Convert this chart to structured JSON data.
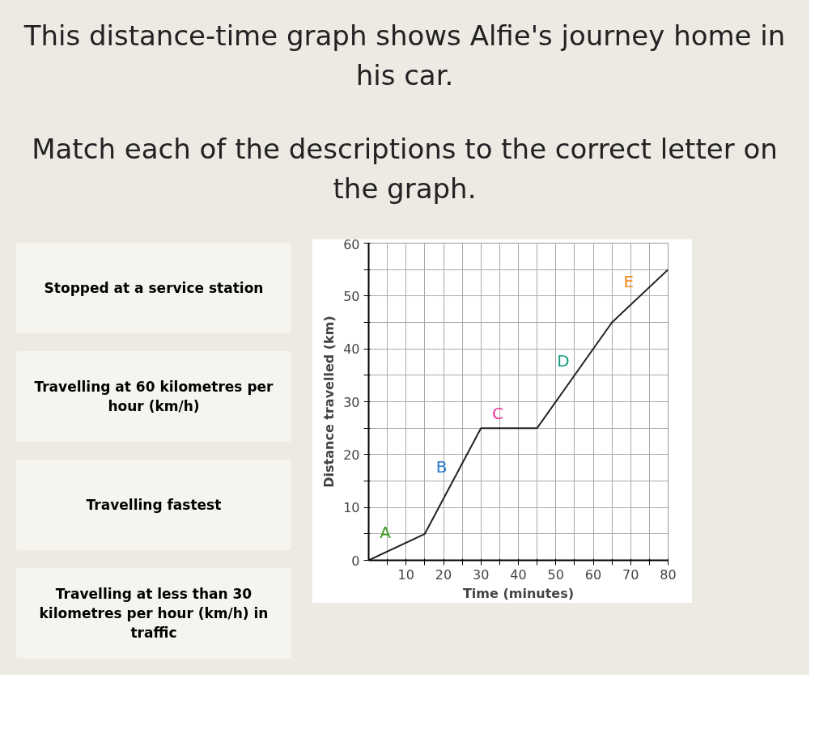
{
  "chart_data": {
    "type": "line",
    "title": "This distance-time graph shows Alfie's journey home in his car.",
    "subtitle": "Match each of the descriptions to the correct letter on the graph.",
    "xlabel": "Time (minutes)",
    "ylabel": "Distance travelled (km)",
    "x": [
      0,
      15,
      30,
      45,
      65,
      80
    ],
    "series": [
      {
        "color": "#222222",
        "values": [
          0,
          5,
          25,
          25,
          45,
          55
        ]
      }
    ],
    "xlim": [
      0,
      80
    ],
    "ylim": [
      0,
      60
    ],
    "xticks": [
      {
        "value": 5,
        "label": null
      },
      10,
      {
        "value": 15,
        "label": null
      },
      20,
      {
        "value": 25,
        "label": null
      },
      30,
      {
        "value": 35,
        "label": null
      },
      40,
      {
        "value": 45,
        "label": null
      },
      50,
      {
        "value": 55,
        "label": null
      },
      60,
      {
        "value": 65,
        "label": null
      },
      70,
      {
        "value": 75,
        "label": null
      },
      80
    ],
    "yticks": [
      0,
      {
        "value": 5,
        "label": null
      },
      10,
      {
        "value": 15,
        "label": null
      },
      20,
      {
        "value": 25,
        "label": null
      },
      30,
      {
        "value": 35,
        "label": null
      },
      40,
      {
        "value": 45,
        "label": null
      },
      50,
      {
        "value": 55,
        "label": null
      },
      60
    ],
    "grid": true,
    "marker": "none",
    "line_style": "solid",
    "annotations": [
      {
        "text": "A",
        "x": 7.5,
        "y": 2.5
      },
      {
        "text": "B",
        "x": 22.5,
        "y": 15
      },
      {
        "text": "C",
        "x": 37.5,
        "y": 25
      },
      {
        "text": "D",
        "x": 55,
        "y": 35
      },
      {
        "text": "E",
        "x": 72.5,
        "y": 50
      },
      "Stopped at a service station",
      "Travelling at 60 kilometres per hour (km/h)",
      "Travelling fastest",
      "Travelling at less than 30 kilometres per hour (km/h) in traffic"
    ]
  }
}
